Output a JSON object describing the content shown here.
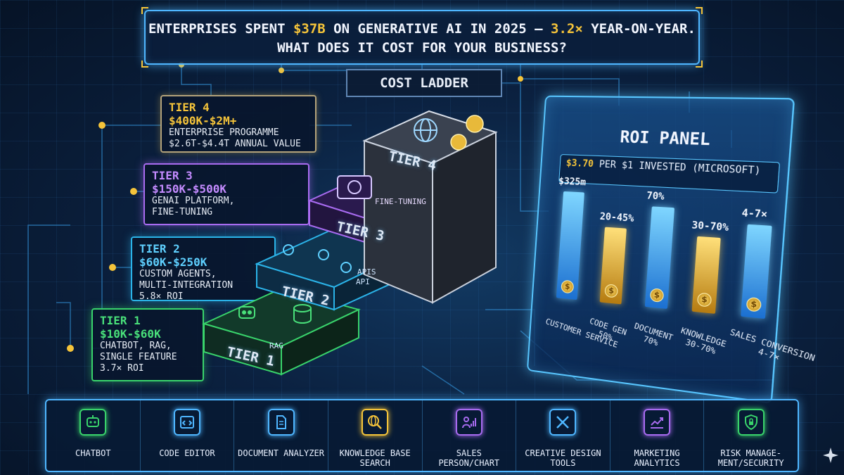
{
  "headline": {
    "line1_pre": "Enterprises spent ",
    "line1_amount": "$37B",
    "line1_mid": " on generative AI in 2025 — ",
    "line1_growth": "3.2×",
    "line1_post": " year-on-year.",
    "line2": "What does it cost for your business?"
  },
  "ladder": {
    "label": "Cost Ladder",
    "tiers": [
      {
        "name": "Tier 4",
        "price": "$400K-$2M+",
        "lines": [
          "Enterprise Programme",
          "$2.6T-$4.4T annual value"
        ],
        "step_label": "TIER 4",
        "color": "#f5c43a"
      },
      {
        "name": "Tier 3",
        "price": "$150K-$500K",
        "lines": [
          "GenAI Platform,",
          "Fine-Tuning"
        ],
        "step_label": "TIER 3",
        "step_badge": "FINE-TUNING",
        "color": "#c48bff"
      },
      {
        "name": "Tier 2",
        "price": "$60K-$250K",
        "lines": [
          "Custom Agents,",
          "Multi-Integration",
          "5.8× ROI"
        ],
        "step_label": "TIER 2",
        "step_badges": [
          "APIS",
          "API"
        ],
        "color": "#5fd0ff"
      },
      {
        "name": "Tier 1",
        "price": "$10K-$60K",
        "lines": [
          "Chatbot, RAG,",
          "Single Feature",
          "3.7× ROI"
        ],
        "step_label": "TIER 1",
        "step_badge": "RAG",
        "color": "#49e07a"
      }
    ]
  },
  "roi_panel": {
    "title": "ROI Panel",
    "subtitle_amount": "$3.70",
    "subtitle_text": " per $1 invested (Microsoft)"
  },
  "chart_data": {
    "type": "bar",
    "title": "ROI Panel",
    "subtitle": "$3.70 per $1 invested (Microsoft)",
    "categories": [
      "Customer Service",
      "Code Gen",
      "Document",
      "Knowledge",
      "Sales Conversion"
    ],
    "category_sub": [
      "",
      "50%",
      "70%",
      "30-70%",
      "4-7×"
    ],
    "value_labels": [
      "$325M",
      "20-45%",
      "70%",
      "30-70%",
      "4-7×"
    ],
    "colors": [
      "#3aa6f0",
      "#e0b23a",
      "#3aa6f0",
      "#e0b23a",
      "#3aa6f0"
    ]
  },
  "toolbar": {
    "items": [
      {
        "label": "Chatbot",
        "icon": "chatbot-icon",
        "color": "#39d36b"
      },
      {
        "label": "Code Editor",
        "icon": "code-editor-icon",
        "color": "#4fb6ff"
      },
      {
        "label": "Document Analyzer",
        "icon": "document-icon",
        "color": "#4fb6ff"
      },
      {
        "label": "Knowledge Base Search",
        "icon": "globe-search-icon",
        "color": "#f5c43a"
      },
      {
        "label": "Sales Person/Chart",
        "icon": "sales-chart-icon",
        "color": "#a86bf0"
      },
      {
        "label": "Creative Design Tools",
        "icon": "design-tools-icon",
        "color": "#4fb6ff"
      },
      {
        "label": "Marketing Analytics",
        "icon": "analytics-icon",
        "color": "#a86bf0"
      },
      {
        "label": "Risk Manage-ment/Security",
        "icon": "lock-shield-icon",
        "color": "#39d36b"
      }
    ]
  }
}
